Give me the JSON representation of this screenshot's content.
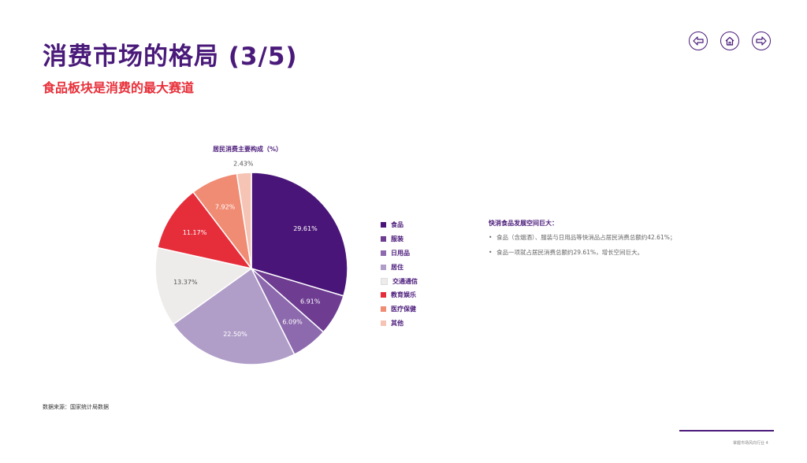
{
  "header": {
    "title": "消费市场的格局 (3/5)",
    "subtitle": "食品板块是消费的最大赛道"
  },
  "nav": {
    "buttons": [
      {
        "icon": "arrow-left-icon"
      },
      {
        "icon": "home-icon"
      },
      {
        "icon": "arrow-right-icon"
      }
    ]
  },
  "chart_data": {
    "type": "pie",
    "title": "居民消费主要构成（%）",
    "categories": [
      "食品",
      "服装",
      "日用品",
      "居住",
      "交通通信",
      "教育娱乐",
      "医疗保健",
      "其他"
    ],
    "values": [
      29.61,
      6.91,
      6.09,
      22.5,
      13.37,
      11.17,
      7.92,
      2.43
    ],
    "value_labels": [
      "29.61%",
      "6.91%",
      "6.09%",
      "22.50%",
      "13.37%",
      "11.17%",
      "7.92%",
      "2.43%"
    ],
    "colors": [
      "#4a1578",
      "#6e3d92",
      "#8d6aae",
      "#b09ec9",
      "#eeeceb",
      "#e62e3b",
      "#f08c74",
      "#f6c4b4"
    ],
    "legend_position": "right"
  },
  "notes": {
    "title": "快消食品发展空间巨大：",
    "items": [
      "食品（含烟酒）、服装与日用品等快消品占居民消费总额约42.61%；",
      "食品一项就占居民消费总额约29.61%，增长空间巨大。"
    ]
  },
  "source": "数据来源：国家统计局数据",
  "footer": {
    "text": "掌握市场风向行业  4"
  }
}
